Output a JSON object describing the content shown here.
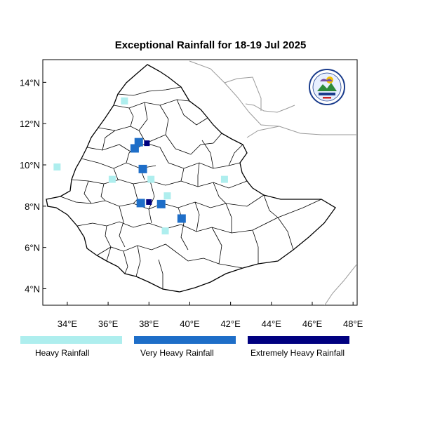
{
  "title": "Exceptional Rainfall for 18-19 Jul 2025",
  "axes": {
    "x_ticks": [
      {
        "value": 34,
        "label": "34°E"
      },
      {
        "value": 36,
        "label": "36°E"
      },
      {
        "value": 38,
        "label": "38°E"
      },
      {
        "value": 40,
        "label": "40°E"
      },
      {
        "value": 42,
        "label": "42°E"
      },
      {
        "value": 44,
        "label": "44°E"
      },
      {
        "value": 46,
        "label": "46°E"
      },
      {
        "value": 48,
        "label": "48°E"
      }
    ],
    "y_ticks": [
      {
        "value": 4,
        "label": "4°N"
      },
      {
        "value": 6,
        "label": "6°N"
      },
      {
        "value": 8,
        "label": "8°N"
      },
      {
        "value": 10,
        "label": "10°N"
      },
      {
        "value": 12,
        "label": "12°N"
      },
      {
        "value": 14,
        "label": "14°N"
      }
    ],
    "lon_range": [
      32.8,
      48.2
    ],
    "lat_range": [
      3.2,
      15.1
    ]
  },
  "legend": [
    {
      "label": "Heavy Rainfall",
      "color": "#aeeeee"
    },
    {
      "label": "Very Heavy Rainfall",
      "color": "#1e6ec8"
    },
    {
      "label": "Extremely Heavy Rainfall",
      "color": "#000080"
    }
  ],
  "logo": {
    "icon": "ethiopian-meteorology-institute-logo"
  },
  "rain_cells": [
    {
      "lon": 37.5,
      "lat": 11.1,
      "level": "very heavy"
    },
    {
      "lon": 37.9,
      "lat": 11.05,
      "level": "extremely heavy"
    },
    {
      "lon": 37.3,
      "lat": 10.8,
      "level": "very heavy"
    },
    {
      "lon": 37.7,
      "lat": 9.8,
      "level": "very heavy"
    },
    {
      "lon": 38.1,
      "lat": 9.3,
      "level": "heavy"
    },
    {
      "lon": 37.6,
      "lat": 8.15,
      "level": "very heavy"
    },
    {
      "lon": 38.0,
      "lat": 8.2,
      "level": "extremely heavy"
    },
    {
      "lon": 38.6,
      "lat": 8.1,
      "level": "very heavy"
    },
    {
      "lon": 39.6,
      "lat": 7.4,
      "level": "very heavy"
    },
    {
      "lon": 33.5,
      "lat": 9.9,
      "level": "heavy"
    },
    {
      "lon": 36.2,
      "lat": 9.3,
      "level": "heavy"
    },
    {
      "lon": 38.9,
      "lat": 8.5,
      "level": "heavy"
    },
    {
      "lon": 41.7,
      "lat": 9.3,
      "level": "heavy"
    },
    {
      "lon": 38.8,
      "lat": 6.8,
      "level": "heavy"
    },
    {
      "lon": 36.8,
      "lat": 13.1,
      "level": "heavy"
    }
  ]
}
